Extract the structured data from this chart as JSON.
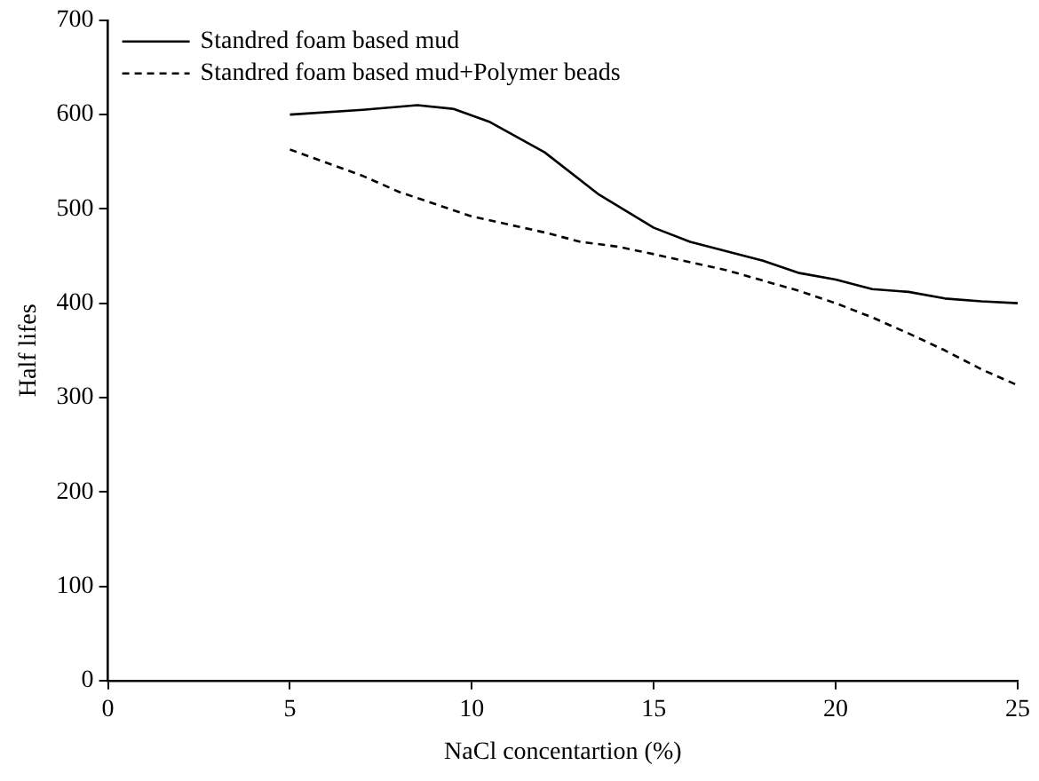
{
  "chart_data": {
    "type": "line",
    "xlabel": "NaCl concentartion (%)",
    "ylabel": "Half lifes",
    "xlim": [
      0,
      25
    ],
    "xticks": [
      0,
      5,
      10,
      15,
      20,
      25
    ],
    "ylim": [
      0,
      700
    ],
    "yticks": [
      0,
      100,
      200,
      300,
      400,
      500,
      600,
      700
    ],
    "grid": false,
    "legend": "top left",
    "marker": "none",
    "series": [
      {
        "name": "Standred foam based mud",
        "color": "#000000",
        "line_style": "solid",
        "x": [
          5,
          7,
          8.5,
          9.5,
          10.5,
          12,
          13.5,
          15,
          16,
          18,
          19,
          20,
          21,
          22,
          23,
          24,
          25
        ],
        "values": [
          600,
          605,
          610,
          606,
          592,
          560,
          515,
          480,
          465,
          445,
          432,
          425,
          415,
          412,
          405,
          402,
          400
        ]
      },
      {
        "name": "Standred foam based mud+Polymer beads",
        "color": "#000000",
        "line_style": "dashed",
        "x": [
          5,
          7,
          8,
          10,
          12,
          13,
          14,
          15,
          17,
          19,
          20,
          21,
          22,
          23,
          24,
          25
        ],
        "values": [
          563,
          535,
          518,
          492,
          475,
          465,
          460,
          452,
          435,
          413,
          400,
          385,
          368,
          350,
          330,
          313
        ]
      }
    ]
  }
}
